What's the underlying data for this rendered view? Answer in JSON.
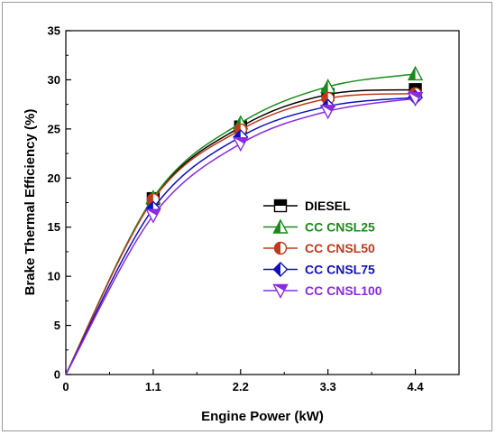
{
  "chart_data": {
    "type": "line",
    "title": "",
    "xlabel": "Engine Power (kW)",
    "ylabel": "Brake Thermal Efficiency (%)",
    "x": [
      0,
      1.1,
      2.2,
      3.3,
      4.4
    ],
    "xticks": [
      "0",
      "1.1",
      "2.2",
      "3.3",
      "4.4"
    ],
    "yticks": [
      "0",
      "5",
      "10",
      "15",
      "20",
      "25",
      "30",
      "35"
    ],
    "xlim": [
      0,
      4.95
    ],
    "ylim": [
      0,
      35
    ],
    "grid": false,
    "legend_position": "center-right",
    "series": [
      {
        "name": "DIESEL",
        "color": "#000000",
        "marker": "square-half",
        "values": [
          0,
          17.9,
          25.2,
          28.5,
          29.0
        ]
      },
      {
        "name": "CC CNSL25",
        "color": "#1a8a1a",
        "marker": "triangle-up-half",
        "values": [
          0,
          18.0,
          25.6,
          29.3,
          30.6
        ]
      },
      {
        "name": "CC CNSL50",
        "color": "#c0391b",
        "marker": "circle-half",
        "values": [
          0,
          17.8,
          24.9,
          28.1,
          28.6
        ]
      },
      {
        "name": "CC CNSL75",
        "color": "#1010c0",
        "marker": "diamond-half",
        "values": [
          0,
          16.9,
          24.2,
          27.3,
          28.2
        ]
      },
      {
        "name": "CC CNSL100",
        "color": "#8a2be2",
        "marker": "triangle-down-half",
        "values": [
          0,
          16.2,
          23.5,
          26.8,
          28.1
        ]
      }
    ]
  }
}
